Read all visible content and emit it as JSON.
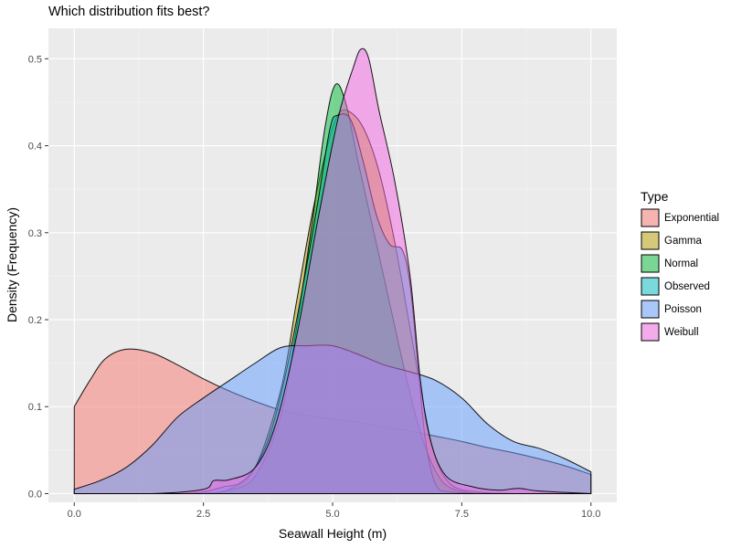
{
  "chart_data": {
    "type": "area",
    "title": "Which distribution fits best?",
    "xlabel": "Seawall Height (m)",
    "ylabel": "Density (Frequency)",
    "xlim": [
      -0.5,
      10.5
    ],
    "ylim": [
      -0.01,
      0.535
    ],
    "x_ticks": [
      0,
      2.5,
      5,
      7.5,
      10
    ],
    "x_tick_labels": [
      "0.0",
      "2.5",
      "5.0",
      "7.5",
      "10.0"
    ],
    "y_ticks": [
      0,
      0.1,
      0.2,
      0.3,
      0.4,
      0.5
    ],
    "y_tick_labels": [
      "0.0",
      "0.1",
      "0.2",
      "0.3",
      "0.4",
      "0.5"
    ],
    "grid": true,
    "legend_title": "Type",
    "legend_position": "right",
    "series": [
      {
        "name": "Exponential",
        "color": "#F8766D",
        "points": [
          [
            0,
            0.1
          ],
          [
            0.3,
            0.13
          ],
          [
            0.6,
            0.155
          ],
          [
            1.0,
            0.166
          ],
          [
            1.5,
            0.162
          ],
          [
            2.0,
            0.148
          ],
          [
            2.5,
            0.132
          ],
          [
            3.0,
            0.118
          ],
          [
            3.5,
            0.106
          ],
          [
            4.0,
            0.096
          ],
          [
            4.5,
            0.09
          ],
          [
            5.0,
            0.086
          ],
          [
            5.5,
            0.082
          ],
          [
            6.0,
            0.077
          ],
          [
            6.5,
            0.072
          ],
          [
            7.0,
            0.066
          ],
          [
            7.5,
            0.06
          ],
          [
            8.0,
            0.053
          ],
          [
            8.5,
            0.047
          ],
          [
            9.0,
            0.04
          ],
          [
            9.5,
            0.032
          ],
          [
            10.0,
            0.022
          ]
        ]
      },
      {
        "name": "Gamma",
        "color": "#B79F00",
        "points": [
          [
            2.5,
            0.0
          ],
          [
            3.0,
            0.005
          ],
          [
            3.5,
            0.03
          ],
          [
            4.0,
            0.12
          ],
          [
            4.3,
            0.22
          ],
          [
            4.6,
            0.32
          ],
          [
            4.9,
            0.4
          ],
          [
            5.1,
            0.435
          ],
          [
            5.3,
            0.44
          ],
          [
            5.6,
            0.42
          ],
          [
            5.9,
            0.37
          ],
          [
            6.2,
            0.29
          ],
          [
            6.5,
            0.19
          ],
          [
            6.8,
            0.09
          ],
          [
            7.0,
            0.04
          ],
          [
            7.3,
            0.01
          ],
          [
            7.8,
            0.002
          ],
          [
            8.5,
            0.0
          ]
        ]
      },
      {
        "name": "Normal",
        "color": "#00BA38",
        "points": [
          [
            2.5,
            0.0
          ],
          [
            3.0,
            0.004
          ],
          [
            3.5,
            0.02
          ],
          [
            4.0,
            0.09
          ],
          [
            4.3,
            0.19
          ],
          [
            4.6,
            0.31
          ],
          [
            4.85,
            0.42
          ],
          [
            5.05,
            0.47
          ],
          [
            5.25,
            0.45
          ],
          [
            5.5,
            0.38
          ],
          [
            5.8,
            0.3
          ],
          [
            6.1,
            0.22
          ],
          [
            6.4,
            0.14
          ],
          [
            6.7,
            0.07
          ],
          [
            7.0,
            0.025
          ],
          [
            7.3,
            0.006
          ],
          [
            7.8,
            0.0
          ]
        ]
      },
      {
        "name": "Observed",
        "color": "#00BFC4",
        "points": [
          [
            0,
            0.0
          ],
          [
            1.0,
            0.0
          ],
          [
            2.0,
            0.0
          ],
          [
            2.5,
            0.002
          ],
          [
            2.9,
            0.008
          ],
          [
            3.2,
            0.012
          ],
          [
            3.5,
            0.03
          ],
          [
            3.8,
            0.07
          ],
          [
            4.1,
            0.14
          ],
          [
            4.4,
            0.23
          ],
          [
            4.7,
            0.33
          ],
          [
            4.95,
            0.42
          ],
          [
            5.1,
            0.435
          ],
          [
            5.35,
            0.43
          ],
          [
            5.6,
            0.38
          ],
          [
            5.85,
            0.32
          ],
          [
            6.1,
            0.287
          ],
          [
            6.35,
            0.28
          ],
          [
            6.5,
            0.24
          ],
          [
            6.65,
            0.15
          ],
          [
            6.8,
            0.06
          ],
          [
            7.0,
            0.01
          ],
          [
            7.3,
            0.002
          ],
          [
            8.0,
            0.0
          ],
          [
            9.0,
            0.0
          ],
          [
            10.0,
            0.0
          ]
        ]
      },
      {
        "name": "Poisson",
        "color": "#619CFF",
        "points": [
          [
            0,
            0.005
          ],
          [
            0.5,
            0.015
          ],
          [
            1.0,
            0.03
          ],
          [
            1.5,
            0.055
          ],
          [
            2.0,
            0.088
          ],
          [
            2.5,
            0.11
          ],
          [
            3.0,
            0.13
          ],
          [
            3.5,
            0.15
          ],
          [
            4.0,
            0.168
          ],
          [
            4.5,
            0.17
          ],
          [
            5.0,
            0.17
          ],
          [
            5.5,
            0.16
          ],
          [
            6.0,
            0.148
          ],
          [
            6.5,
            0.14
          ],
          [
            7.0,
            0.13
          ],
          [
            7.5,
            0.11
          ],
          [
            8.0,
            0.08
          ],
          [
            8.5,
            0.06
          ],
          [
            9.0,
            0.052
          ],
          [
            9.5,
            0.04
          ],
          [
            10.0,
            0.025
          ]
        ]
      },
      {
        "name": "Weibull",
        "color": "#F564E3",
        "points": [
          [
            0,
            0.0
          ],
          [
            1.5,
            0.0
          ],
          [
            2.5,
            0.005
          ],
          [
            2.7,
            0.015
          ],
          [
            3.0,
            0.016
          ],
          [
            3.5,
            0.03
          ],
          [
            3.9,
            0.08
          ],
          [
            4.3,
            0.18
          ],
          [
            4.7,
            0.31
          ],
          [
            5.1,
            0.43
          ],
          [
            5.4,
            0.49
          ],
          [
            5.55,
            0.511
          ],
          [
            5.7,
            0.5
          ],
          [
            5.9,
            0.44
          ],
          [
            6.2,
            0.36
          ],
          [
            6.5,
            0.25
          ],
          [
            6.7,
            0.13
          ],
          [
            6.9,
            0.06
          ],
          [
            7.2,
            0.02
          ],
          [
            7.7,
            0.008
          ],
          [
            8.2,
            0.004
          ],
          [
            8.6,
            0.006
          ],
          [
            9.0,
            0.003
          ],
          [
            10.0,
            0.0
          ]
        ]
      }
    ]
  }
}
